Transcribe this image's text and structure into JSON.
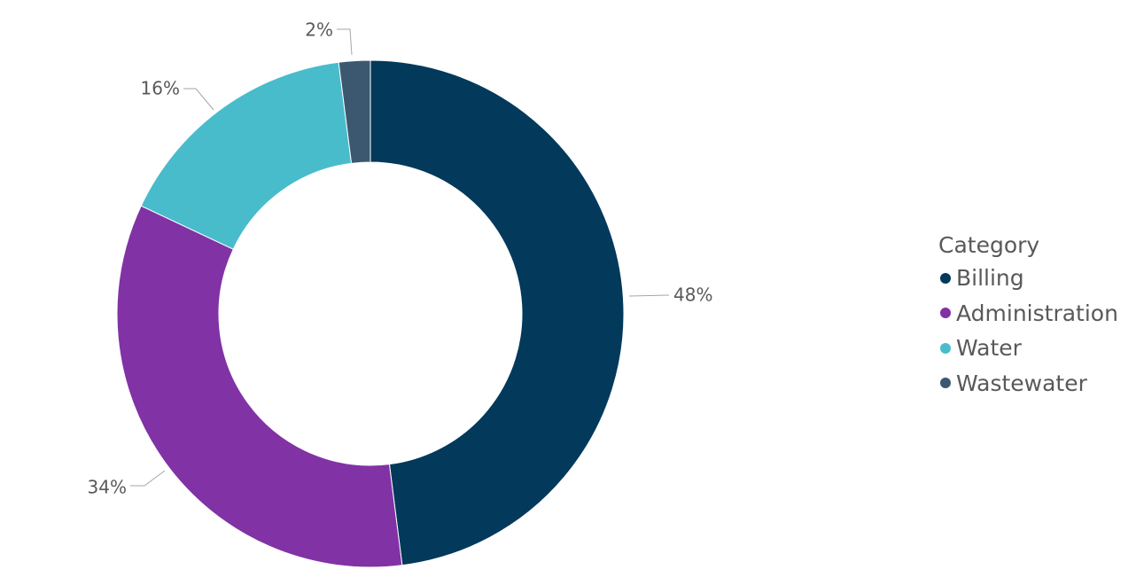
{
  "chart_data": {
    "type": "pie",
    "donut": true,
    "categories": [
      "Billing",
      "Administration",
      "Water",
      "Wastewater"
    ],
    "values": [
      48,
      34,
      16,
      2
    ],
    "value_labels": [
      "48%",
      "34%",
      "16%",
      "2%"
    ],
    "colors": [
      "#03395B",
      "#8132A5",
      "#48BCCB",
      "#3C5870"
    ],
    "legend": {
      "title": "Category",
      "placement": "right"
    },
    "title": ""
  }
}
